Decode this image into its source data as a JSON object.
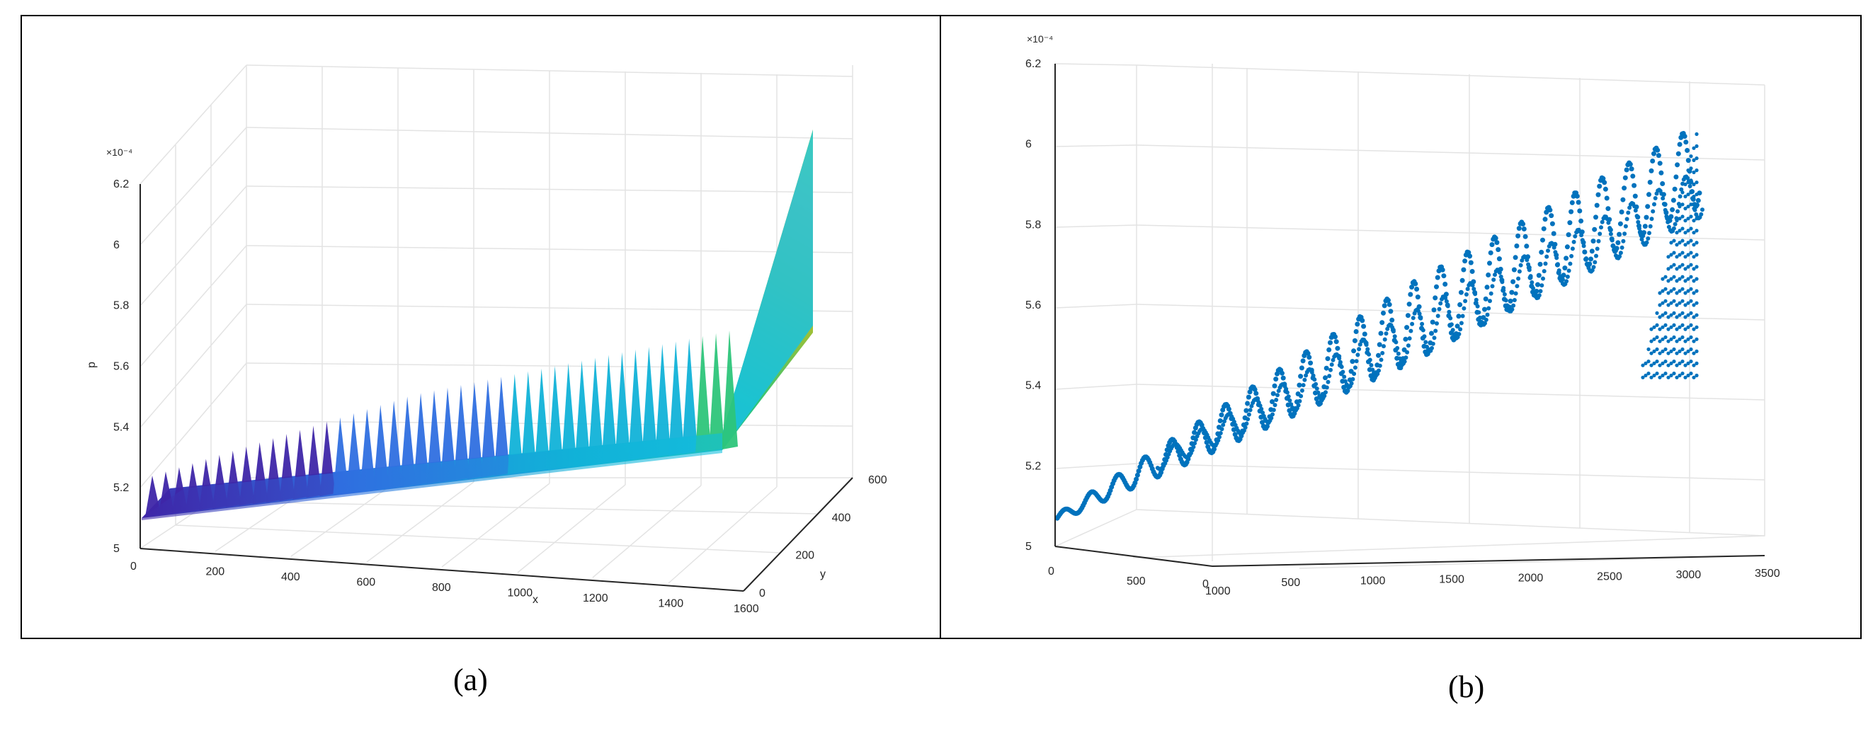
{
  "chart_data": [
    {
      "panel_label": "(a)",
      "type": "surface",
      "ylabel": "p",
      "xlabel": "x",
      "zlabel": "y",
      "exponent_label": "×10⁻⁴",
      "p_ticks": [
        "5",
        "5.2",
        "5.4",
        "5.6",
        "5.8",
        "6",
        "6.2"
      ],
      "x_ticks": [
        "0",
        "200",
        "400",
        "600",
        "800",
        "1000",
        "1200",
        "1400",
        "1600"
      ],
      "y_ticks": [
        "0",
        "200",
        "400",
        "600"
      ],
      "p_range": [
        5.0,
        6.2
      ],
      "x_range": [
        0,
        1600
      ],
      "y_range": [
        0,
        600
      ],
      "grid": true,
      "colormap": [
        "#3e26a8",
        "#2f6fe0",
        "#11b2d8",
        "#2dc57a",
        "#bebf23",
        "#fcc536",
        "#f9fb0e"
      ],
      "series": [
        {
          "points": [
            [
              0,
              0,
              5.09
            ],
            [
              100,
              0,
              5.17
            ],
            [
              200,
              0,
              5.22
            ],
            [
              400,
              0,
              5.27
            ],
            [
              600,
              0,
              5.3
            ],
            [
              800,
              0,
              5.33
            ],
            [
              1000,
              0,
              5.36
            ],
            [
              1200,
              0,
              5.38
            ],
            [
              1400,
              0,
              5.4
            ],
            [
              1550,
              0,
              5.42
            ],
            [
              1550,
              600,
              6.1
            ]
          ]
        }
      ]
    },
    {
      "panel_label": "(b)",
      "type": "scatter",
      "exponent_label": "×10⁻⁴",
      "p_ticks": [
        "5",
        "5.2",
        "5.4",
        "5.6",
        "5.8",
        "6",
        "6.2"
      ],
      "x_ticks": [
        "0",
        "500",
        "1000",
        "1500",
        "2000",
        "2500",
        "3000",
        "3500"
      ],
      "y_ticks": [
        "0",
        "500",
        "1000"
      ],
      "p_range": [
        5.0,
        6.2
      ],
      "x_range": [
        0,
        3500
      ],
      "y_range": [
        0,
        1000
      ],
      "grid": true,
      "marker_color": "#0072bd",
      "series": [
        {
          "points": [
            [
              0,
              0,
              5.09
            ],
            [
              200,
              0,
              5.14
            ],
            [
              500,
              0,
              5.2
            ],
            [
              1000,
              0,
              5.3
            ],
            [
              1500,
              0,
              5.42
            ],
            [
              2000,
              0,
              5.55
            ],
            [
              2500,
              0,
              5.7
            ],
            [
              3000,
              0,
              5.85
            ],
            [
              3100,
              0,
              5.97
            ],
            [
              3100,
              1000,
              6.08
            ]
          ]
        }
      ]
    }
  ]
}
